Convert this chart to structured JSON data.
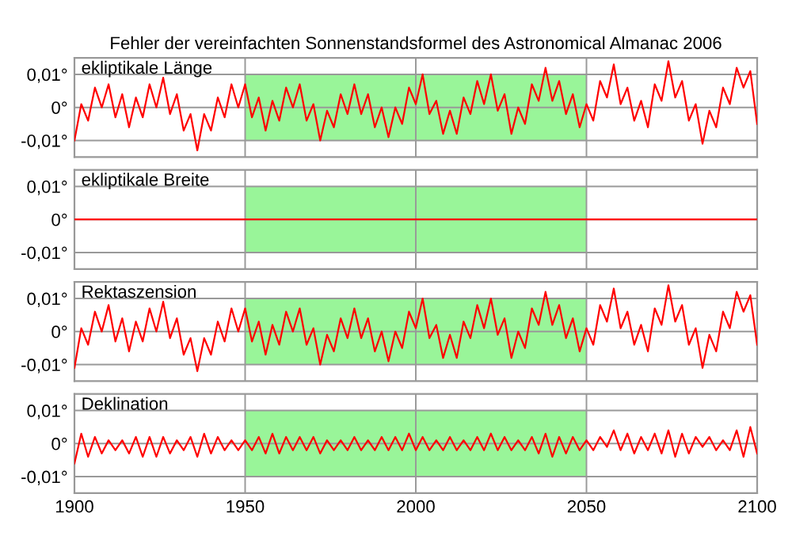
{
  "chart_data": [
    {
      "type": "line",
      "title": "Fehler der vereinfachten Sonnenstandsformel des Astronomical Almanac 2006",
      "subtitle": "ekliptikale Länge",
      "tick_labels": "y",
      "grid": true,
      "xlim": [
        1900,
        2100
      ],
      "xticks": [
        1900,
        1950,
        2000,
        2050,
        2100
      ],
      "ylim": [
        -0.015,
        0.015
      ],
      "yticks": [
        {
          "value": -0.01,
          "label": "-0,01°"
        },
        {
          "value": 0,
          "label": "0°"
        },
        {
          "value": 0.01,
          "label": "0,01°"
        }
      ],
      "bands": [
        {
          "axis": "x",
          "from": 1950,
          "to": 2050,
          "color": "#99f599"
        }
      ],
      "x": [
        1900,
        1902,
        1904,
        1906,
        1908,
        1910,
        1912,
        1914,
        1916,
        1918,
        1920,
        1922,
        1924,
        1926,
        1928,
        1930,
        1932,
        1934,
        1936,
        1938,
        1940,
        1942,
        1944,
        1946,
        1948,
        1950,
        1952,
        1954,
        1956,
        1958,
        1960,
        1962,
        1964,
        1966,
        1968,
        1970,
        1972,
        1974,
        1976,
        1978,
        1980,
        1982,
        1984,
        1986,
        1988,
        1990,
        1992,
        1994,
        1996,
        1998,
        2000,
        2002,
        2004,
        2006,
        2008,
        2010,
        2012,
        2014,
        2016,
        2018,
        2020,
        2022,
        2024,
        2026,
        2028,
        2030,
        2032,
        2034,
        2036,
        2038,
        2040,
        2042,
        2044,
        2046,
        2048,
        2050,
        2052,
        2054,
        2056,
        2058,
        2060,
        2062,
        2064,
        2066,
        2068,
        2070,
        2072,
        2074,
        2076,
        2078,
        2080,
        2082,
        2084,
        2086,
        2088,
        2090,
        2092,
        2094,
        2096,
        2098,
        2100
      ],
      "series": [
        {
          "color": "#ff0000",
          "values": [
            -0.01,
            0.001,
            -0.004,
            0.006,
            0.0,
            0.007,
            -0.003,
            0.004,
            -0.006,
            0.003,
            -0.003,
            0.007,
            0.0,
            0.009,
            -0.002,
            0.004,
            -0.007,
            -0.002,
            -0.013,
            -0.002,
            -0.007,
            0.003,
            -0.003,
            0.007,
            0.0,
            0.007,
            -0.003,
            0.003,
            -0.007,
            0.002,
            -0.004,
            0.006,
            0.0,
            0.007,
            -0.004,
            0.001,
            -0.01,
            -0.001,
            -0.006,
            0.004,
            -0.002,
            0.007,
            -0.002,
            0.004,
            -0.006,
            0.0,
            -0.009,
            0.0,
            -0.005,
            0.006,
            0.001,
            0.01,
            -0.002,
            0.002,
            -0.008,
            -0.001,
            -0.008,
            0.003,
            -0.002,
            0.008,
            0.001,
            0.01,
            -0.001,
            0.004,
            -0.008,
            0.0,
            -0.005,
            0.007,
            0.002,
            0.012,
            0.002,
            0.008,
            -0.002,
            0.004,
            -0.006,
            0.001,
            -0.004,
            0.008,
            0.003,
            0.013,
            0.001,
            0.006,
            -0.004,
            0.002,
            -0.006,
            0.007,
            0.002,
            0.014,
            0.003,
            0.008,
            -0.004,
            0.001,
            -0.011,
            -0.001,
            -0.006,
            0.006,
            0.001,
            0.012,
            0.006,
            0.011,
            -0.005
          ]
        }
      ]
    },
    {
      "type": "line",
      "subtitle": "ekliptikale Breite",
      "tick_labels": "y",
      "grid": true,
      "xlim": [
        1900,
        2100
      ],
      "xticks": [
        1900,
        1950,
        2000,
        2050,
        2100
      ],
      "ylim": [
        -0.015,
        0.015
      ],
      "yticks": [
        {
          "value": -0.01,
          "label": "-0,01°"
        },
        {
          "value": 0,
          "label": "0°"
        },
        {
          "value": 0.01,
          "label": "0,01°"
        }
      ],
      "bands": [
        {
          "axis": "x",
          "from": 1950,
          "to": 2050,
          "color": "#99f599"
        }
      ],
      "x": [
        1900,
        1950,
        2000,
        2050,
        2100
      ],
      "series": [
        {
          "color": "#ff0000",
          "values": [
            0,
            0,
            0,
            0,
            0
          ]
        }
      ]
    },
    {
      "type": "line",
      "subtitle": "Rektaszension",
      "tick_labels": "y",
      "grid": true,
      "xlim": [
        1900,
        2100
      ],
      "xticks": [
        1900,
        1950,
        2000,
        2050,
        2100
      ],
      "ylim": [
        -0.015,
        0.015
      ],
      "yticks": [
        {
          "value": -0.01,
          "label": "-0,01°"
        },
        {
          "value": 0,
          "label": "0°"
        },
        {
          "value": 0.01,
          "label": "0,01°"
        }
      ],
      "bands": [
        {
          "axis": "x",
          "from": 1950,
          "to": 2050,
          "color": "#99f599"
        }
      ],
      "x": [
        1900,
        1902,
        1904,
        1906,
        1908,
        1910,
        1912,
        1914,
        1916,
        1918,
        1920,
        1922,
        1924,
        1926,
        1928,
        1930,
        1932,
        1934,
        1936,
        1938,
        1940,
        1942,
        1944,
        1946,
        1948,
        1950,
        1952,
        1954,
        1956,
        1958,
        1960,
        1962,
        1964,
        1966,
        1968,
        1970,
        1972,
        1974,
        1976,
        1978,
        1980,
        1982,
        1984,
        1986,
        1988,
        1990,
        1992,
        1994,
        1996,
        1998,
        2000,
        2002,
        2004,
        2006,
        2008,
        2010,
        2012,
        2014,
        2016,
        2018,
        2020,
        2022,
        2024,
        2026,
        2028,
        2030,
        2032,
        2034,
        2036,
        2038,
        2040,
        2042,
        2044,
        2046,
        2048,
        2050,
        2052,
        2054,
        2056,
        2058,
        2060,
        2062,
        2064,
        2066,
        2068,
        2070,
        2072,
        2074,
        2076,
        2078,
        2080,
        2082,
        2084,
        2086,
        2088,
        2090,
        2092,
        2094,
        2096,
        2098,
        2100
      ],
      "series": [
        {
          "color": "#ff0000",
          "values": [
            -0.011,
            0.001,
            -0.004,
            0.006,
            0.0,
            0.008,
            -0.003,
            0.004,
            -0.006,
            0.003,
            -0.003,
            0.007,
            0.0,
            0.009,
            -0.002,
            0.004,
            -0.007,
            -0.002,
            -0.012,
            -0.002,
            -0.007,
            0.003,
            -0.003,
            0.007,
            0.0,
            0.007,
            -0.003,
            0.003,
            -0.007,
            0.002,
            -0.004,
            0.006,
            0.0,
            0.007,
            -0.004,
            0.001,
            -0.01,
            -0.001,
            -0.006,
            0.004,
            -0.002,
            0.007,
            -0.002,
            0.004,
            -0.006,
            0.0,
            -0.009,
            0.0,
            -0.005,
            0.006,
            0.001,
            0.01,
            -0.002,
            0.002,
            -0.008,
            -0.001,
            -0.008,
            0.003,
            -0.002,
            0.008,
            0.001,
            0.01,
            -0.001,
            0.004,
            -0.008,
            0.0,
            -0.005,
            0.007,
            0.002,
            0.012,
            0.002,
            0.008,
            -0.002,
            0.004,
            -0.006,
            0.001,
            -0.004,
            0.008,
            0.003,
            0.013,
            0.001,
            0.006,
            -0.004,
            0.002,
            -0.006,
            0.007,
            0.002,
            0.014,
            0.003,
            0.008,
            -0.004,
            0.001,
            -0.011,
            -0.001,
            -0.006,
            0.006,
            0.001,
            0.012,
            0.006,
            0.011,
            -0.004
          ]
        }
      ]
    },
    {
      "type": "line",
      "subtitle": "Deklination",
      "grid": true,
      "xlim": [
        1900,
        2100
      ],
      "xticks": [
        1900,
        1950,
        2000,
        2050,
        2100
      ],
      "ylim": [
        -0.015,
        0.015
      ],
      "yticks": [
        {
          "value": -0.01,
          "label": "-0,01°"
        },
        {
          "value": 0,
          "label": "0°"
        },
        {
          "value": 0.01,
          "label": "0,01°"
        }
      ],
      "bands": [
        {
          "axis": "x",
          "from": 1950,
          "to": 2050,
          "color": "#99f599"
        }
      ],
      "x": [
        1900,
        1902,
        1904,
        1906,
        1908,
        1910,
        1912,
        1914,
        1916,
        1918,
        1920,
        1922,
        1924,
        1926,
        1928,
        1930,
        1932,
        1934,
        1936,
        1938,
        1940,
        1942,
        1944,
        1946,
        1948,
        1950,
        1952,
        1954,
        1956,
        1958,
        1960,
        1962,
        1964,
        1966,
        1968,
        1970,
        1972,
        1974,
        1976,
        1978,
        1980,
        1982,
        1984,
        1986,
        1988,
        1990,
        1992,
        1994,
        1996,
        1998,
        2000,
        2002,
        2004,
        2006,
        2008,
        2010,
        2012,
        2014,
        2016,
        2018,
        2020,
        2022,
        2024,
        2026,
        2028,
        2030,
        2032,
        2034,
        2036,
        2038,
        2040,
        2042,
        2044,
        2046,
        2048,
        2050,
        2052,
        2054,
        2056,
        2058,
        2060,
        2062,
        2064,
        2066,
        2068,
        2070,
        2072,
        2074,
        2076,
        2078,
        2080,
        2082,
        2084,
        2086,
        2088,
        2090,
        2092,
        2094,
        2096,
        2098,
        2100
      ],
      "series": [
        {
          "color": "#ff0000",
          "values": [
            -0.006,
            0.003,
            -0.004,
            0.002,
            -0.003,
            0.001,
            -0.002,
            0.001,
            -0.003,
            0.002,
            -0.004,
            0.002,
            -0.004,
            0.002,
            -0.003,
            0.001,
            -0.002,
            0.002,
            -0.004,
            0.003,
            -0.003,
            0.002,
            -0.002,
            0.001,
            -0.002,
            0.001,
            -0.002,
            0.002,
            -0.003,
            0.003,
            -0.003,
            0.002,
            -0.002,
            0.002,
            -0.002,
            0.002,
            -0.003,
            0.001,
            -0.002,
            0.001,
            -0.002,
            0.002,
            -0.002,
            0.001,
            -0.002,
            0.002,
            -0.002,
            0.002,
            -0.002,
            0.003,
            -0.002,
            0.002,
            -0.002,
            0.001,
            -0.002,
            0.002,
            -0.002,
            0.001,
            -0.002,
            0.002,
            -0.002,
            0.003,
            -0.002,
            0.002,
            -0.002,
            0.001,
            -0.002,
            0.002,
            -0.003,
            0.003,
            -0.004,
            0.002,
            -0.003,
            0.002,
            -0.002,
            0.001,
            -0.002,
            0.002,
            -0.001,
            0.004,
            -0.002,
            0.003,
            -0.003,
            0.002,
            -0.002,
            0.003,
            -0.003,
            0.004,
            -0.004,
            0.003,
            -0.003,
            0.002,
            -0.001,
            0.002,
            -0.002,
            0.001,
            -0.002,
            0.004,
            -0.004,
            0.005,
            -0.003
          ]
        }
      ]
    }
  ]
}
